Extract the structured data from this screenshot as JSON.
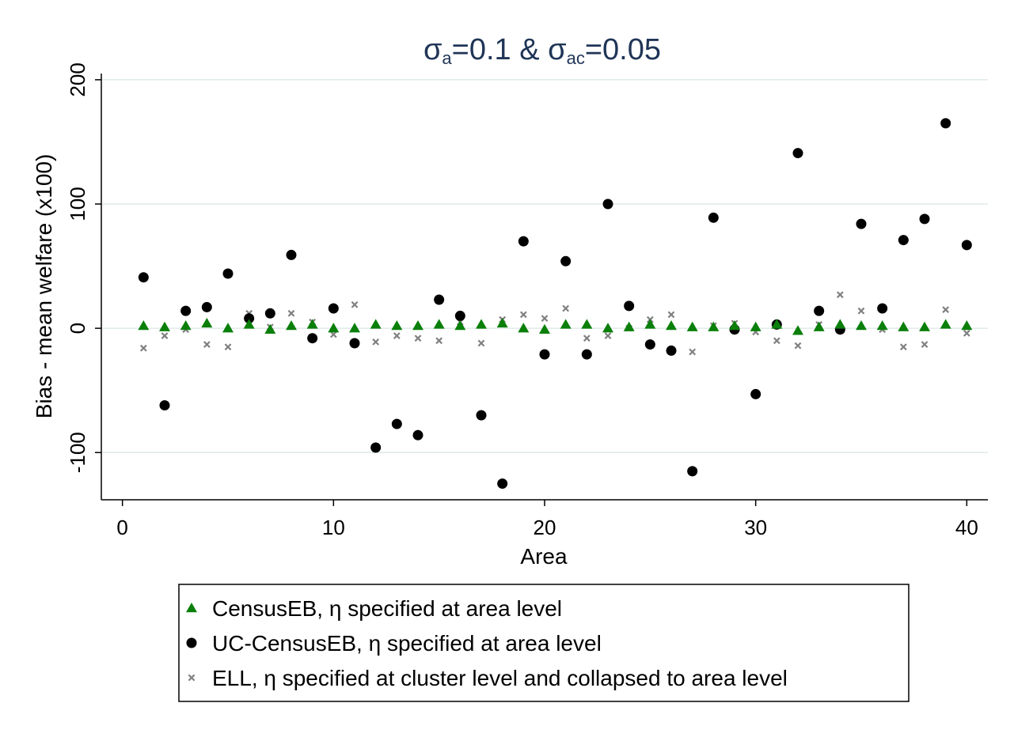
{
  "chart_data": {
    "type": "scatter",
    "title": {
      "s1": "σ",
      "sub1": "a",
      "mid": "=0.1 & σ",
      "sub2": "ac",
      "end": "=0.05"
    },
    "xlabel": "Area",
    "ylabel": "Bias - mean welfare (x100)",
    "xlim": [
      -1,
      41
    ],
    "ylim": [
      -138,
      205
    ],
    "xticks": [
      0,
      10,
      20,
      30,
      40
    ],
    "yticks": [
      -100,
      0,
      100,
      200
    ],
    "grid": "horizontal",
    "legend_position": "bottom",
    "x": [
      1,
      2,
      3,
      4,
      5,
      6,
      7,
      8,
      9,
      10,
      11,
      12,
      13,
      14,
      15,
      16,
      17,
      18,
      19,
      20,
      21,
      22,
      23,
      24,
      25,
      26,
      27,
      28,
      29,
      30,
      31,
      32,
      33,
      34,
      35,
      36,
      37,
      38,
      39,
      40
    ],
    "series": [
      {
        "name": "CensusEB, η specified at area level",
        "marker": "triangle",
        "color": "#0a7f0a",
        "values": [
          2,
          1,
          2,
          4,
          0,
          3,
          -1,
          2,
          3,
          0,
          0,
          3,
          2,
          2,
          3,
          2,
          3,
          4,
          0,
          -1,
          3,
          3,
          0,
          1,
          3,
          2,
          1,
          1,
          2,
          1,
          3,
          -2,
          1,
          3,
          2,
          2,
          1,
          1,
          3,
          2
        ]
      },
      {
        "name": "UC-CensusEB, η specified at area level",
        "marker": "circle",
        "color": "#000000",
        "values": [
          41,
          -62,
          14,
          17,
          44,
          8,
          12,
          59,
          -8,
          16,
          -12,
          -96,
          -77,
          -86,
          23,
          10,
          -70,
          -125,
          70,
          -21,
          54,
          -21,
          100,
          18,
          -13,
          -18,
          -115,
          89,
          -1,
          -53,
          3,
          141,
          14,
          -1,
          84,
          16,
          71,
          88,
          165,
          67
        ]
      },
      {
        "name": "ELL, η specified at cluster level and collapsed to area level",
        "marker": "x",
        "color": "#808080",
        "values": [
          -16,
          -6,
          -1,
          -13,
          -15,
          12,
          1,
          12,
          5,
          -5,
          19,
          -11,
          -6,
          -8,
          -10,
          5,
          -12,
          7,
          11,
          8,
          16,
          -8,
          -6,
          0,
          7,
          11,
          -19,
          2,
          4,
          -3,
          -10,
          -14,
          3,
          27,
          14,
          -1,
          -15,
          -13,
          15,
          -4
        ]
      }
    ]
  }
}
